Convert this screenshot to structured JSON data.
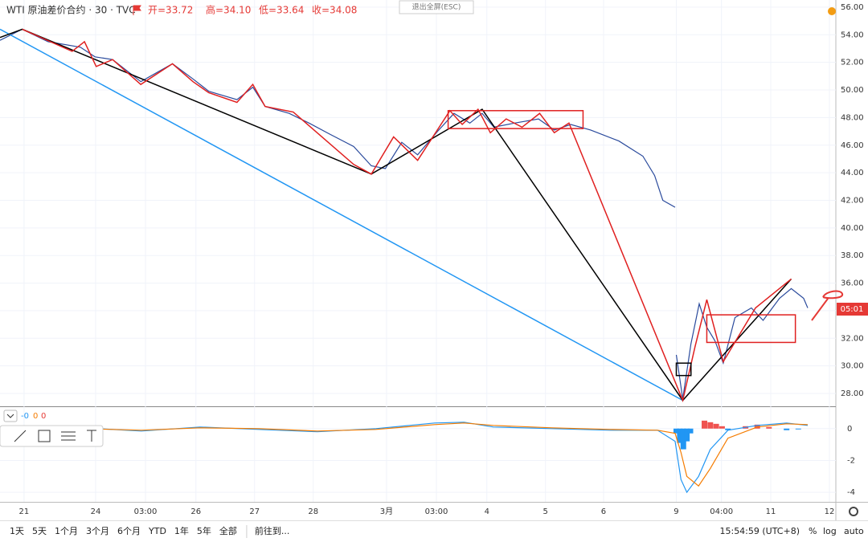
{
  "chart_data": [
    {
      "type": "line",
      "title": "WTI 原油差价合约 · 30 · TVC",
      "ohlc": [
        "开=33.72",
        "高=34.10",
        "低=33.64",
        "收=34.08"
      ],
      "exit_button": "退出全屏(ESC)",
      "countdown": "05:01",
      "x": [
        -0.41,
        -0.03,
        0.41,
        0.96,
        1.21,
        1.51,
        1.99,
        2.53,
        2.88,
        3.15,
        3.63,
        3.9,
        4.11,
        4.52,
        4.86,
        5.21,
        5.62,
        5.92,
        6.16,
        6.44,
        6.71,
        7.05,
        7.33,
        7.6,
        7.81,
        8.01,
        8.36,
        8.77,
        9.04,
        9.32,
        9.66,
        10.14,
        10.55,
        10.75,
        10.89,
        11.1,
        11.11,
        11.12,
        11.23,
        11.37,
        11.51,
        11.64,
        11.78,
        11.92,
        12.12,
        12.4,
        12.6,
        12.88,
        13.08,
        13.29,
        13.36
      ],
      "series": [
        {
          "color": "#2a4a9c",
          "values": [
            53.6,
            54.4,
            53.5,
            53.1,
            52.4,
            52.2,
            50.6,
            51.9,
            50.8,
            49.9,
            49.3,
            50.2,
            48.8,
            48.3,
            47.6,
            46.8,
            45.9,
            44.5,
            44.3,
            46.2,
            45.3,
            47.0,
            48.3,
            47.6,
            48.3,
            47.3,
            47.6,
            47.9,
            47.1,
            47.5,
            47.1,
            46.3,
            45.2,
            43.8,
            42.0,
            41.5,
            null,
            30.8,
            27.6,
            31.6,
            34.5,
            32.8,
            31.8,
            30.2,
            33.5,
            34.2,
            33.3,
            34.9,
            35.6,
            34.9,
            34.2
          ]
        }
      ],
      "xlim": [
        -0.41,
        13.84
      ],
      "ylim": [
        27.07,
        56.52
      ],
      "yticks": [
        {
          "value": 56,
          "label": "56.00"
        },
        {
          "value": 54,
          "label": "54.00"
        },
        {
          "value": 52,
          "label": "52.00"
        },
        {
          "value": 50,
          "label": "50.00"
        },
        {
          "value": 48,
          "label": "48.00"
        },
        {
          "value": 46,
          "label": "46.00"
        },
        {
          "value": 44,
          "label": "44.00"
        },
        {
          "value": 42,
          "label": "42.00"
        },
        {
          "value": 40,
          "label": "40.00"
        },
        {
          "value": 38,
          "label": "38.00"
        },
        {
          "value": 36,
          "label": "36.00"
        },
        {
          "value": 34,
          "label": "34.00"
        },
        {
          "value": 32,
          "label": "32.00"
        },
        {
          "value": 30,
          "label": "30.00"
        },
        {
          "value": 28,
          "label": "28.00"
        }
      ],
      "xticks": [
        {
          "value": 0,
          "label": "21"
        },
        {
          "value": 1.22,
          "label": "24"
        },
        {
          "value": 2.07,
          "label": "03:00"
        },
        {
          "value": 2.93,
          "label": "26"
        },
        {
          "value": 3.93,
          "label": "27"
        },
        {
          "value": 4.93,
          "label": "28"
        },
        {
          "value": 6.18,
          "label": "3月"
        },
        {
          "value": 7.03,
          "label": "03:00"
        },
        {
          "value": 7.89,
          "label": "4"
        },
        {
          "value": 8.89,
          "label": "5"
        },
        {
          "value": 9.88,
          "label": "6"
        },
        {
          "value": 11.12,
          "label": "9"
        },
        {
          "value": 11.89,
          "label": "04:00"
        },
        {
          "value": 12.73,
          "label": "11"
        },
        {
          "value": 13.73,
          "label": "12"
        }
      ],
      "drawings": [
        {
          "kind": "polyline",
          "color": "#2196f3",
          "x": [
            -0.41,
            11.23
          ],
          "y": [
            54.4,
            27.5
          ]
        },
        {
          "kind": "polyline",
          "color": "#000000",
          "x": [
            -0.41,
            -0.03,
            5.92,
            7.81,
            11.23,
            13.08
          ],
          "y": [
            53.8,
            54.4,
            43.9,
            48.6,
            27.5,
            36.3
          ]
        },
        {
          "kind": "polyline",
          "color": "#e02020",
          "x": [
            -0.03,
            0.82,
            1.03,
            1.23,
            1.51,
            1.99,
            2.53,
            2.88,
            3.15,
            3.63,
            3.9,
            4.11,
            4.59,
            5.62,
            5.92,
            6.3,
            6.71,
            7.26,
            7.47,
            7.74,
            7.95,
            8.22,
            8.49,
            8.79,
            9.04,
            9.29,
            11.23,
            11.44,
            11.64,
            11.92,
            12.47,
            13.08
          ],
          "y": [
            54.4,
            52.8,
            53.5,
            51.7,
            52.2,
            50.4,
            51.9,
            50.6,
            49.8,
            49.1,
            50.4,
            48.8,
            48.4,
            44.6,
            43.9,
            46.6,
            44.9,
            48.5,
            47.5,
            48.6,
            46.9,
            47.9,
            47.3,
            48.3,
            46.9,
            47.6,
            27.5,
            31.4,
            34.8,
            30.3,
            34.2,
            36.3
          ]
        },
        {
          "kind": "rect",
          "color": "#e02020",
          "x": [
            7.23,
            9.53
          ],
          "y": [
            48.5,
            47.2
          ]
        },
        {
          "kind": "rect",
          "color": "#e02020",
          "x": [
            11.64,
            13.15
          ],
          "y": [
            33.7,
            31.7
          ]
        },
        {
          "kind": "rect",
          "color": "#000000",
          "x": [
            11.12,
            11.37
          ],
          "y": [
            30.2,
            29.3
          ]
        }
      ],
      "toolbar": [
        "1天",
        "5天",
        "1个月",
        "3个月",
        "6个月",
        "YTD",
        "1年",
        "5年",
        "全部"
      ],
      "goto": "前往到...",
      "clock": "15:54:59 (UTC+8)",
      "scale_buttons": [
        "%",
        "log",
        "auto"
      ]
    },
    {
      "type": "macd",
      "legend": [
        "-0",
        "0",
        "0"
      ],
      "x": [
        -0.41,
        1,
        2,
        3,
        4,
        5,
        6,
        7,
        7.5,
        8,
        9,
        10,
        10.8,
        11.1,
        11.2,
        11.3,
        11.5,
        11.7,
        12,
        12.5,
        13,
        13.36
      ],
      "series": [
        {
          "color": "#2196f3",
          "values": [
            -0.1,
            0.05,
            -0.15,
            0.1,
            -0.05,
            -0.2,
            0,
            0.35,
            0.4,
            0.1,
            0,
            -0.1,
            -0.1,
            -0.8,
            -3.2,
            -4.0,
            -3.0,
            -1.3,
            -0.1,
            0.2,
            0.35,
            0.2
          ]
        },
        {
          "color": "#f57c00",
          "values": [
            -0.1,
            0,
            -0.1,
            0.05,
            0,
            -0.15,
            -0.05,
            0.25,
            0.35,
            0.2,
            0.05,
            -0.05,
            -0.1,
            -0.3,
            -1.5,
            -3.0,
            -3.6,
            -2.5,
            -0.6,
            0.1,
            0.3,
            0.25
          ]
        }
      ],
      "histogram": {
        "x": [
          11.12,
          11.18,
          11.24,
          11.3,
          11.36,
          11.6,
          11.7,
          11.8,
          11.9,
          12.0,
          12.3,
          12.5,
          12.7,
          13.0,
          13.2
        ],
        "values": [
          -0.3,
          -0.9,
          -1.3,
          -0.8,
          -0.3,
          0.5,
          0.4,
          0.3,
          0.15,
          -0.1,
          0.15,
          0.25,
          0.1,
          -0.1,
          -0.05
        ],
        "up_color": "#ef5350",
        "down_color": "#2196f3"
      },
      "ylim": [
        -4.6,
        1.3
      ],
      "yticks": [
        0,
        -2,
        -4
      ]
    }
  ]
}
